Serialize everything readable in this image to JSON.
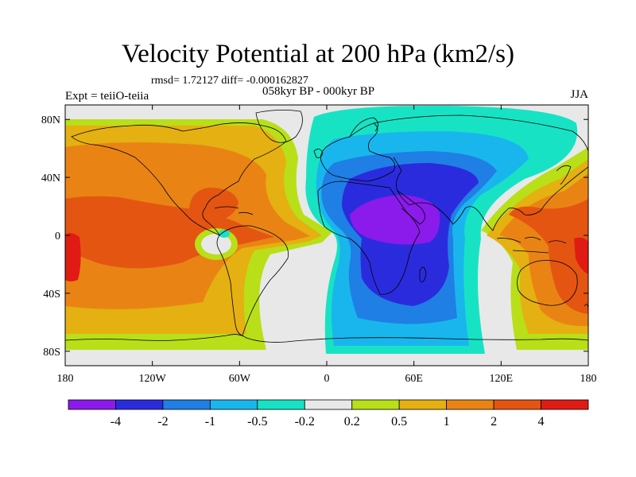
{
  "title": "Velocity Potential at 200 hPa (km2/s)",
  "stats": "rmsd= 1.72127 diff= -0.000162827",
  "period": "058kyr BP - 000kyr BP",
  "experiment": "Expt = teiiO-teiia",
  "season": "JJA",
  "map": {
    "lon_range": [
      -180,
      180
    ],
    "lat_range": [
      -90,
      90
    ],
    "x_ticks": [
      {
        "lon": -180,
        "label": "180"
      },
      {
        "lon": -120,
        "label": "120W"
      },
      {
        "lon": -60,
        "label": "60W"
      },
      {
        "lon": 0,
        "label": "0"
      },
      {
        "lon": 60,
        "label": "60E"
      },
      {
        "lon": 120,
        "label": "120E"
      },
      {
        "lon": 180,
        "label": "180"
      }
    ],
    "y_ticks": [
      {
        "lat": 80,
        "label": "80N"
      },
      {
        "lat": 40,
        "label": "40N"
      },
      {
        "lat": 0,
        "label": "0"
      },
      {
        "lat": -40,
        "label": "40S"
      },
      {
        "lat": -80,
        "label": "80S"
      }
    ]
  },
  "colorbar": {
    "colors": [
      "#8a1bea",
      "#2b2bde",
      "#1f7fe4",
      "#19b6ee",
      "#17e3c4",
      "#e8e8e8",
      "#b8df18",
      "#e5b011",
      "#e98414",
      "#e45512",
      "#e01b14"
    ],
    "labels": [
      "-4",
      "-2",
      "-1",
      "-0.5",
      "-0.2",
      "0.2",
      "0.5",
      "1",
      "2",
      "4"
    ]
  }
}
